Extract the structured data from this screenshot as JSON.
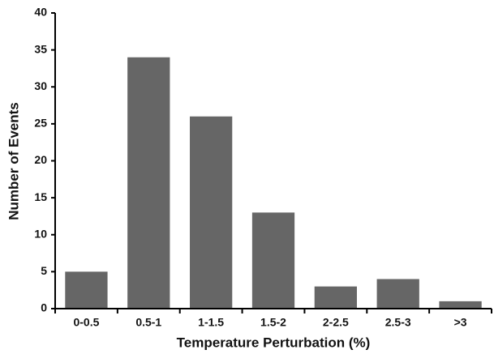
{
  "chart_data": {
    "type": "bar",
    "x_label": "Temperature Perturbation (%)",
    "y_label": "Number of Events",
    "categories": [
      "0-0.5",
      "0.5-1",
      "1-1.5",
      "1.5-2",
      "2-2.5",
      "2.5-3",
      ">3"
    ],
    "values": [
      5,
      34,
      26,
      13,
      3,
      4,
      1
    ],
    "color": "#666666",
    "ylim": [
      0,
      40
    ],
    "yticks": [
      0,
      5,
      10,
      15,
      20,
      25,
      30,
      35,
      40
    ],
    "grid": false
  }
}
